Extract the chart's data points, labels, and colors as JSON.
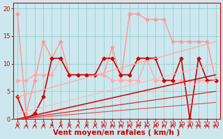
{
  "background_color": "#cce8ee",
  "grid_color": "#99cccc",
  "xlabel": "Vent moyen/en rafales ( km/h )",
  "xlabel_color": "#cc0000",
  "xlim": [
    -0.5,
    23.5
  ],
  "ylim": [
    0,
    21
  ],
  "yticks": [
    0,
    5,
    10,
    15,
    20
  ],
  "xticks": [
    0,
    1,
    2,
    3,
    4,
    5,
    6,
    7,
    8,
    9,
    10,
    11,
    12,
    13,
    14,
    15,
    16,
    17,
    18,
    19,
    20,
    21,
    22,
    23
  ],
  "tick_fontsize": 6,
  "label_fontsize": 7.5,
  "series": [
    {
      "name": "pink_top_jagged",
      "x": [
        0,
        1,
        2,
        3,
        4,
        5,
        6,
        7,
        8,
        9,
        10,
        11,
        12,
        13,
        14,
        15,
        16,
        17,
        18,
        19,
        20,
        21,
        22,
        23
      ],
      "y": [
        19,
        1,
        7,
        14,
        11,
        14,
        8,
        8,
        8,
        8,
        8,
        13,
        7,
        19,
        19,
        18,
        18,
        18,
        14,
        14,
        14,
        14,
        14,
        7
      ],
      "color": "#ff9999",
      "linewidth": 1.1,
      "marker": "D",
      "markersize": 2.5
    },
    {
      "name": "pink_mid_jagged",
      "x": [
        0,
        1,
        2,
        3,
        4,
        5,
        6,
        7,
        8,
        9,
        10,
        11,
        12,
        13,
        14,
        15,
        16,
        17,
        18,
        19,
        20,
        21,
        22,
        23
      ],
      "y": [
        7,
        7,
        8,
        8,
        8,
        11,
        8,
        8,
        8,
        8,
        8,
        7,
        7,
        7,
        7,
        11,
        7,
        7,
        7,
        7,
        7,
        7,
        7,
        7
      ],
      "color": "#ffaaaa",
      "linewidth": 1.0,
      "marker": "D",
      "markersize": 2.5
    },
    {
      "name": "dark_red_jagged",
      "x": [
        0,
        1,
        2,
        3,
        4,
        5,
        6,
        7,
        8,
        9,
        10,
        11,
        12,
        13,
        14,
        15,
        16,
        17,
        18,
        19,
        20,
        21,
        22,
        23
      ],
      "y": [
        4,
        0,
        1,
        4,
        11,
        11,
        8,
        8,
        8,
        8,
        11,
        11,
        8,
        8,
        11,
        11,
        11,
        7,
        7,
        11,
        0,
        11,
        7,
        7
      ],
      "color": "#cc0000",
      "linewidth": 1.2,
      "marker": "D",
      "markersize": 2.5
    },
    {
      "name": "pink_diag_high",
      "x": [
        0,
        23
      ],
      "y": [
        4,
        14
      ],
      "color": "#ffaaaa",
      "linewidth": 1.0,
      "marker": null,
      "markersize": 0
    },
    {
      "name": "pink_diag_mid",
      "x": [
        0,
        23
      ],
      "y": [
        1,
        10
      ],
      "color": "#ffbbbb",
      "linewidth": 0.9,
      "marker": null,
      "markersize": 0
    },
    {
      "name": "pink_diag_low",
      "x": [
        0,
        23
      ],
      "y": [
        0,
        7
      ],
      "color": "#ffcccc",
      "linewidth": 0.9,
      "marker": null,
      "markersize": 0
    },
    {
      "name": "darkred_diag_high",
      "x": [
        0,
        23
      ],
      "y": [
        0,
        8
      ],
      "color": "#cc0000",
      "linewidth": 1.1,
      "marker": null,
      "markersize": 0
    },
    {
      "name": "darkred_diag_low",
      "x": [
        0,
        23
      ],
      "y": [
        0,
        5
      ],
      "color": "#dd2222",
      "linewidth": 0.9,
      "marker": null,
      "markersize": 0
    },
    {
      "name": "darkred_diag_lowest",
      "x": [
        0,
        23
      ],
      "y": [
        0,
        3
      ],
      "color": "#ee4444",
      "linewidth": 0.8,
      "marker": null,
      "markersize": 0
    }
  ],
  "wind_arrows_x": [
    0,
    1,
    2,
    3,
    4,
    5,
    6,
    7,
    8,
    9,
    10,
    11,
    12,
    13,
    14,
    15,
    16,
    17,
    18,
    19,
    20,
    21,
    22,
    23
  ]
}
